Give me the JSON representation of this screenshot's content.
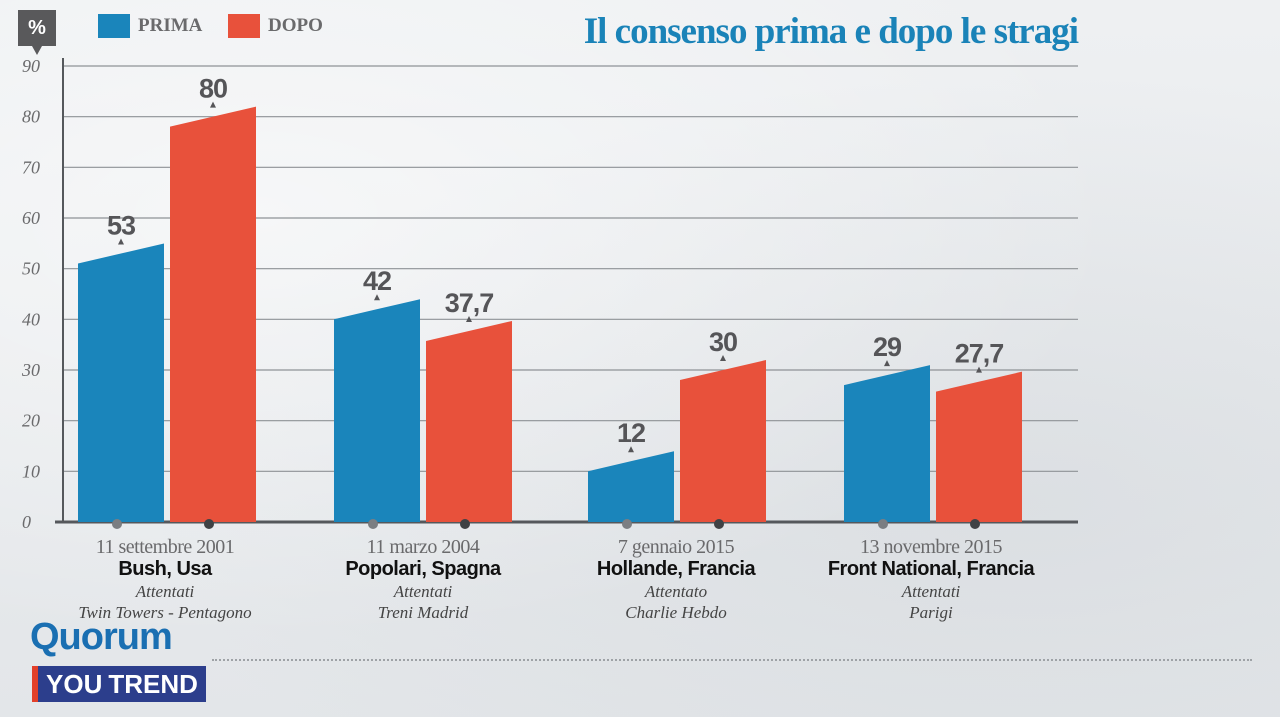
{
  "unit_badge": "%",
  "legend": [
    {
      "label": "PRIMA",
      "color": "#1a85bb"
    },
    {
      "label": "DOPO",
      "color": "#e8513b"
    }
  ],
  "title": "Il consenso prima e dopo le stragi",
  "categories": [
    {
      "date": "11 settembre 2001",
      "who": "Bush, Usa",
      "event_line1": "Attentati",
      "event_line2": "Twin Towers - Pentagono"
    },
    {
      "date": "11 marzo 2004",
      "who": "Popolari, Spagna",
      "event_line1": "Attentati",
      "event_line2": "Treni Madrid"
    },
    {
      "date": "7 gennaio 2015",
      "who": "Hollande, Francia",
      "event_line1": "Attentato",
      "event_line2": "Charlie Hebdo"
    },
    {
      "date": "13 novembre 2015",
      "who": "Front National, Francia",
      "event_line1": "Attentati",
      "event_line2": "Parigi"
    }
  ],
  "chart_data": {
    "type": "bar",
    "title": "Il consenso prima e dopo le stragi",
    "ylabel": "%",
    "ylim": [
      0,
      90
    ],
    "yticks": [
      0,
      10,
      20,
      30,
      40,
      50,
      60,
      70,
      80,
      90
    ],
    "grid": true,
    "legend_position": "top-left",
    "categories": [
      "11 settembre 2001",
      "11 marzo 2004",
      "7 gennaio 2015",
      "13 novembre 2015"
    ],
    "series": [
      {
        "name": "PRIMA",
        "color": "#1a85bb",
        "values": [
          53,
          42,
          12,
          29
        ],
        "labels": [
          "53",
          "42",
          "12",
          "29"
        ]
      },
      {
        "name": "DOPO",
        "color": "#e8513b",
        "values": [
          80,
          37.7,
          30,
          27.7
        ],
        "labels": [
          "80",
          "37,7",
          "30",
          "27,7"
        ]
      }
    ]
  },
  "brand": {
    "quorum": "Quorum",
    "you": "YOU",
    "trend": "TREND"
  }
}
